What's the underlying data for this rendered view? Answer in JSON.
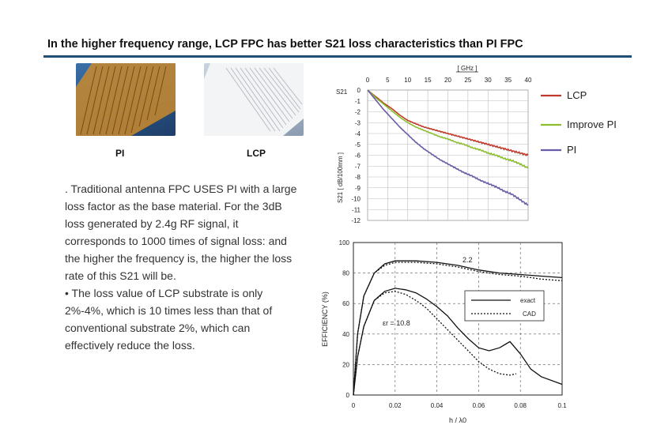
{
  "header": {
    "title": "In the higher frequency range, LCP FPC has better S21 loss characteristics than PI FPC"
  },
  "photos": {
    "pi_label": "PI",
    "lcp_label": "LCP"
  },
  "text": {
    "p1": ". Traditional antenna FPC USES PI with a large loss factor as the base material. For the 3dB loss generated by 2.4g RF signal, it corresponds to 1000 times of signal loss: and the higher the frequency is, the higher the loss rate of this S21 will be.",
    "p2": "• The loss value of LCP substrate is only 2%-4%, which is 10 times less than that of conventional substrate 2%, which can effectively reduce the loss."
  },
  "colors": {
    "accent_rule": "#1f4e79",
    "lcp": "#c0392b",
    "improve_pi": "#8bbf2a",
    "pi": "#6a5aa8"
  },
  "chart_data": [
    {
      "type": "line",
      "xlabel": "[ GHz ]",
      "ylabel": "S21 [ dB/100mm ]",
      "y_axis_title": "S21",
      "xlim": [
        0,
        40
      ],
      "ylim": [
        -12,
        0
      ],
      "x_ticks": [
        "0",
        "5",
        "10",
        "15",
        "20",
        "25",
        "30",
        "35",
        "40"
      ],
      "y_ticks": [
        "0",
        "-1",
        "-2",
        "-3",
        "-4",
        "-5",
        "-6",
        "-7",
        "-8",
        "-9",
        "-10",
        "-11",
        "-12"
      ],
      "grid": true,
      "legend_position": "right",
      "series": [
        {
          "name": "LCP",
          "color": "#c0392b",
          "x": [
            0,
            2,
            4,
            6,
            8,
            10,
            12,
            14,
            16,
            18,
            20,
            22,
            24,
            26,
            28,
            30,
            32,
            34,
            36,
            38,
            40
          ],
          "y": [
            0,
            -0.6,
            -1.2,
            -1.7,
            -2.3,
            -2.8,
            -3.1,
            -3.4,
            -3.6,
            -3.8,
            -4.0,
            -4.2,
            -4.4,
            -4.6,
            -4.8,
            -5.0,
            -5.2,
            -5.4,
            -5.6,
            -5.8,
            -6.0
          ]
        },
        {
          "name": "Improve PI",
          "color": "#8bbf2a",
          "x": [
            0,
            2,
            4,
            6,
            8,
            10,
            12,
            14,
            16,
            18,
            20,
            22,
            24,
            26,
            28,
            30,
            32,
            34,
            36,
            38,
            40
          ],
          "y": [
            0,
            -0.7,
            -1.3,
            -1.9,
            -2.5,
            -3.0,
            -3.4,
            -3.7,
            -4.0,
            -4.3,
            -4.5,
            -4.8,
            -5.0,
            -5.3,
            -5.5,
            -5.8,
            -6.0,
            -6.3,
            -6.5,
            -6.8,
            -7.2
          ]
        },
        {
          "name": "PI",
          "color": "#6a5aa8",
          "x": [
            0,
            2,
            4,
            6,
            8,
            10,
            12,
            14,
            16,
            18,
            20,
            22,
            24,
            26,
            28,
            30,
            32,
            34,
            36,
            38,
            40
          ],
          "y": [
            0,
            -0.9,
            -1.8,
            -2.6,
            -3.4,
            -4.1,
            -4.8,
            -5.4,
            -5.9,
            -6.4,
            -6.8,
            -7.2,
            -7.6,
            -7.9,
            -8.3,
            -8.6,
            -8.9,
            -9.3,
            -9.6,
            -10.1,
            -10.6
          ]
        }
      ]
    },
    {
      "type": "line",
      "xlabel": "h / λ0",
      "ylabel": "EFFICIENCY (%)",
      "xlim": [
        0,
        0.1
      ],
      "ylim": [
        0,
        100
      ],
      "x_ticks": [
        "0",
        "0.02",
        "0.04",
        "0.06",
        "0.08",
        "0.1"
      ],
      "y_ticks": [
        "0",
        "20",
        "40",
        "60",
        "80",
        "100"
      ],
      "grid": true,
      "legend_position": "right",
      "annotations": [
        "2.2",
        "εr = 10.8"
      ],
      "legend": [
        {
          "name": "exact",
          "style": "solid"
        },
        {
          "name": "CAD",
          "style": "dashed"
        }
      ],
      "series": [
        {
          "name": "exact",
          "group": "2.2",
          "style": "solid",
          "x": [
            0,
            0.002,
            0.005,
            0.01,
            0.015,
            0.02,
            0.03,
            0.04,
            0.05,
            0.06,
            0.07,
            0.08,
            0.09,
            0.1
          ],
          "y": [
            0,
            40,
            65,
            80,
            86,
            88,
            88,
            87,
            85,
            82,
            80,
            79,
            78,
            77
          ]
        },
        {
          "name": "CAD",
          "group": "2.2",
          "style": "dashed",
          "x": [
            0,
            0.002,
            0.005,
            0.01,
            0.015,
            0.02,
            0.03,
            0.04,
            0.05,
            0.06,
            0.07,
            0.08,
            0.09,
            0.1
          ],
          "y": [
            0,
            40,
            65,
            80,
            85,
            87,
            87,
            86,
            84,
            81,
            79,
            78,
            76,
            75
          ]
        },
        {
          "name": "exact",
          "group": "10.8",
          "style": "solid",
          "x": [
            0,
            0.002,
            0.005,
            0.01,
            0.015,
            0.02,
            0.025,
            0.03,
            0.035,
            0.04,
            0.045,
            0.05,
            0.055,
            0.06,
            0.065,
            0.07,
            0.075,
            0.08,
            0.085,
            0.09,
            0.1
          ],
          "y": [
            0,
            25,
            45,
            62,
            68,
            70,
            69,
            67,
            63,
            58,
            52,
            44,
            37,
            31,
            29,
            31,
            35,
            27,
            17,
            12,
            7
          ]
        },
        {
          "name": "CAD",
          "group": "10.8",
          "style": "dashed",
          "x": [
            0,
            0.002,
            0.005,
            0.01,
            0.015,
            0.02,
            0.025,
            0.03,
            0.035,
            0.04,
            0.045,
            0.05,
            0.055,
            0.06,
            0.065,
            0.07,
            0.075,
            0.078
          ],
          "y": [
            0,
            25,
            45,
            62,
            67,
            68,
            66,
            62,
            57,
            50,
            43,
            36,
            29,
            22,
            17,
            14,
            13,
            14
          ]
        }
      ]
    }
  ]
}
